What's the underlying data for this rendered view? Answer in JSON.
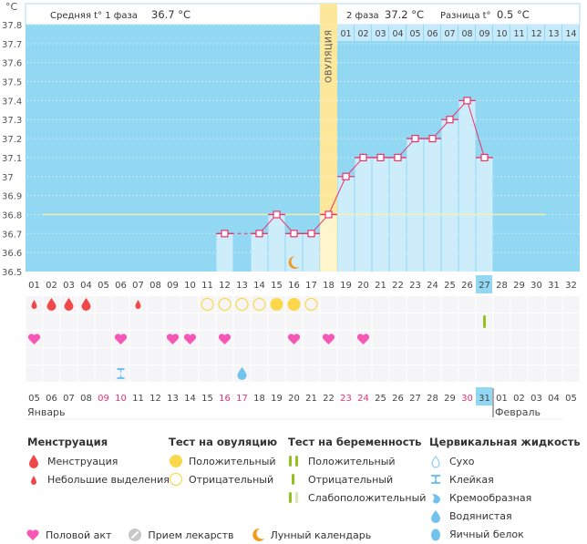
{
  "header": {
    "phase1_label": "Средняя t° 1 фаза",
    "phase1_value": "36.7 °C",
    "phase2_label": "2 фаза",
    "phase2_value": "37.2 °C",
    "diff_label": "Разница t°",
    "diff_value": "0.5 °C"
  },
  "chart_data": {
    "type": "bar",
    "title": "",
    "ylabel": "°C",
    "ylim": [
      36.5,
      37.8
    ],
    "yticks": [
      "36.5",
      "36.6",
      "36.7",
      "36.8",
      "36.9",
      "37",
      "37.1",
      "37.2",
      "37.3",
      "37.4",
      "37.5",
      "37.6",
      "37.7",
      "37.8"
    ],
    "grid": true,
    "cycle_days": [
      "01",
      "02",
      "03",
      "04",
      "05",
      "06",
      "07",
      "08",
      "09",
      "10",
      "11",
      "12",
      "13",
      "14",
      "15",
      "16",
      "17",
      "18",
      "19",
      "20",
      "21",
      "22",
      "23",
      "24",
      "25",
      "26",
      "27",
      "28",
      "29",
      "30",
      "31",
      "32"
    ],
    "current_day": "27",
    "ovulation_day": "18",
    "ovulation_label": "ОВУЛЯЦИЯ",
    "coverline": 36.8,
    "phase2_days": [
      "01",
      "02",
      "03",
      "04",
      "05",
      "06",
      "07",
      "08",
      "09",
      "10",
      "11",
      "12",
      "13",
      "14"
    ],
    "phase2_current": "09",
    "series": [
      {
        "name": "Базальная температура",
        "values": [
          null,
          null,
          null,
          null,
          null,
          null,
          null,
          null,
          null,
          null,
          null,
          36.7,
          null,
          36.7,
          36.8,
          36.7,
          36.7,
          36.8,
          37.0,
          37.1,
          37.1,
          37.1,
          37.2,
          37.2,
          37.3,
          37.4,
          37.1,
          null,
          null,
          null,
          null,
          null
        ]
      }
    ],
    "dashed_gap_days": [
      "12",
      "14"
    ],
    "moon_day": "16",
    "calendar_dates": [
      "05",
      "06",
      "07",
      "08",
      "09",
      "10",
      "11",
      "12",
      "13",
      "14",
      "15",
      "16",
      "17",
      "18",
      "19",
      "20",
      "21",
      "22",
      "23",
      "24",
      "25",
      "26",
      "27",
      "28",
      "29",
      "30",
      "31",
      "01",
      "02",
      "03",
      "04",
      "05"
    ],
    "weekend_dates_index": [
      4,
      5,
      11,
      12,
      18,
      19,
      25
    ],
    "today_index": 26,
    "months": [
      {
        "label": "Январь",
        "start_index": 0
      },
      {
        "label": "Февраль",
        "start_index": 27
      }
    ],
    "symbol_rows": {
      "menstruation": [
        "small",
        "big",
        "big",
        "big",
        null,
        null,
        "small",
        null,
        null,
        null,
        null,
        null,
        null,
        null,
        null,
        null,
        null,
        null,
        null,
        null,
        null,
        null,
        null,
        null,
        null,
        null,
        null,
        null,
        null,
        null,
        null,
        null
      ],
      "ovulation_test": [
        null,
        null,
        null,
        null,
        null,
        null,
        null,
        null,
        null,
        null,
        "neg",
        "neg",
        "neg",
        "neg",
        "pos",
        "pos",
        "neg",
        null,
        null,
        null,
        null,
        null,
        null,
        null,
        null,
        null,
        null,
        null,
        null,
        null,
        null,
        null
      ],
      "pregnancy_test": [
        null,
        null,
        null,
        null,
        null,
        null,
        null,
        null,
        null,
        null,
        null,
        null,
        null,
        null,
        null,
        null,
        null,
        null,
        null,
        null,
        null,
        null,
        null,
        null,
        null,
        null,
        "neg",
        null,
        null,
        null,
        null,
        null
      ],
      "intercourse": [
        true,
        null,
        null,
        null,
        null,
        true,
        null,
        null,
        true,
        true,
        null,
        true,
        null,
        null,
        null,
        true,
        null,
        true,
        null,
        true,
        null,
        null,
        null,
        null,
        null,
        null,
        null,
        null,
        null,
        null,
        null,
        null
      ],
      "cervical_fluid": [
        null,
        null,
        null,
        null,
        null,
        "sticky",
        null,
        null,
        null,
        null,
        null,
        null,
        "watery",
        null,
        null,
        null,
        null,
        null,
        null,
        null,
        null,
        null,
        null,
        null,
        null,
        null,
        null,
        null,
        null,
        null,
        null,
        null
      ]
    }
  },
  "colors": {
    "plot_bg": "#92d8f3",
    "bar_fill": "#cdedfb",
    "ovulation_band": "#fde79a",
    "line": "#e8336b",
    "coverline": "#f6f0a8",
    "menstruation": "#f04848",
    "ovulation_test": "#fbd84a",
    "pregnancy_test": "#95c11f",
    "intercourse": "#f657b6",
    "cervical": "#72c2ee",
    "moon": "#f49a1b",
    "weekend": "#e8336b",
    "today": "#92d8f3"
  },
  "legend": {
    "menstruation": {
      "title": "Менструация",
      "items": [
        {
          "icon": "drop-big-icon",
          "label": "Менструация"
        },
        {
          "icon": "drop-small-icon",
          "label": "Небольшие выделения"
        }
      ]
    },
    "ovulation_test": {
      "title": "Тест на овуляцию",
      "items": [
        {
          "icon": "circle-filled-icon",
          "label": "Положительный"
        },
        {
          "icon": "circle-outline-icon",
          "label": "Отрицательный"
        }
      ]
    },
    "pregnancy_test": {
      "title": "Тест на беременность",
      "items": [
        {
          "icon": "two-bars-icon",
          "label": "Положительный"
        },
        {
          "icon": "one-bar-icon",
          "label": "Отрицательный"
        },
        {
          "icon": "faint-bars-icon",
          "label": "Слабоположительный"
        }
      ]
    },
    "cervical": {
      "title": "Цервикальная жидкость",
      "items": [
        {
          "icon": "dry-drop-icon",
          "label": "Сухо"
        },
        {
          "icon": "sticky-icon",
          "label": "Клейкая"
        },
        {
          "icon": "creamy-icon",
          "label": "Кремообразная"
        },
        {
          "icon": "watery-drop-icon",
          "label": "Водянистая"
        },
        {
          "icon": "egg-white-icon",
          "label": "Яичный белок"
        }
      ]
    },
    "bottom": [
      {
        "icon": "heart-icon",
        "label": "Половой акт"
      },
      {
        "icon": "pill-icon",
        "label": "Прием лекарств"
      },
      {
        "icon": "moon-icon",
        "label": "Лунный календарь"
      }
    ]
  }
}
